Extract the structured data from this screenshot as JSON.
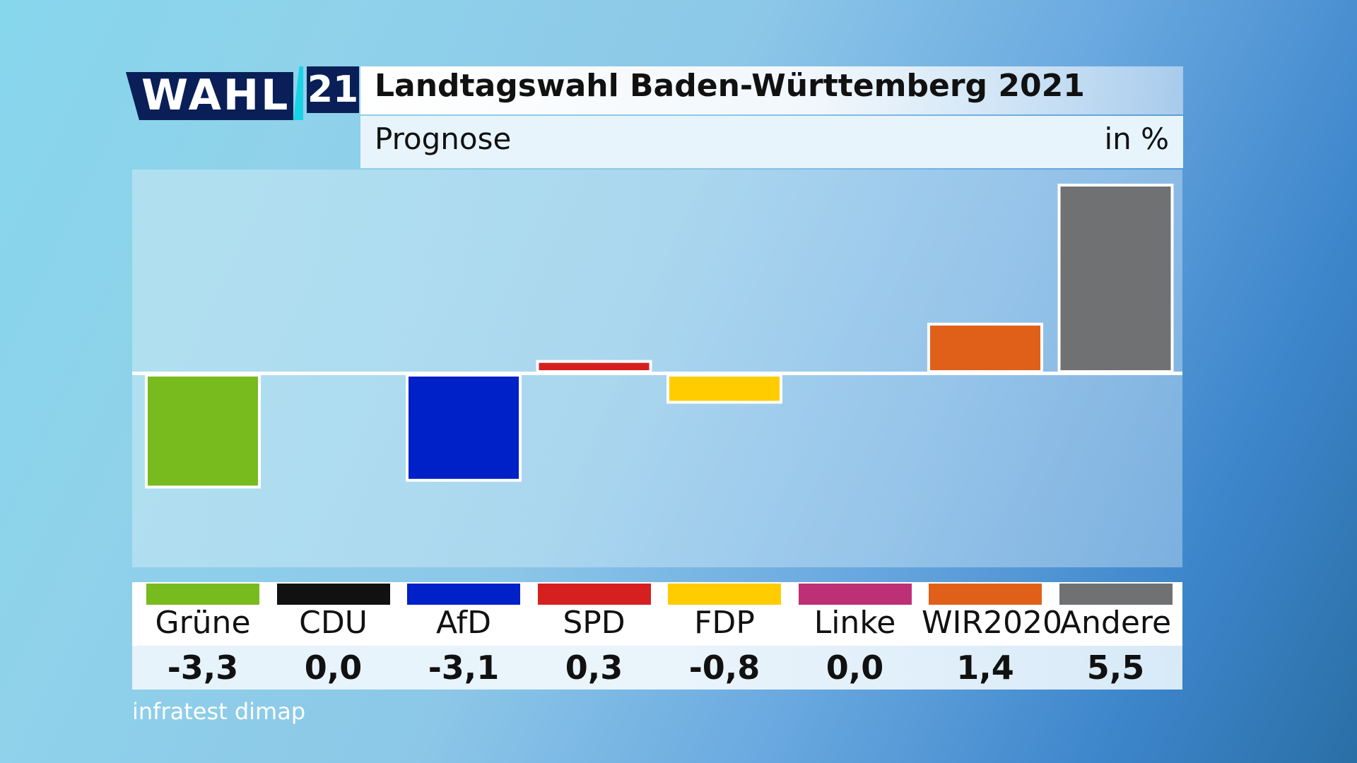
{
  "header": {
    "logo_word": "WAHL",
    "logo_number": "21",
    "title": "Landtagswahl Baden-Württemberg 2021",
    "subtitle": "Prognose",
    "unit": "in %"
  },
  "source": "infratest dimap",
  "chart_data": {
    "type": "bar",
    "title": "Landtagswahl Baden-Württemberg 2021",
    "subtitle": "Prognose",
    "unit": "in %",
    "categories": [
      "Grüne",
      "CDU",
      "AfD",
      "SPD",
      "FDP",
      "Linke",
      "WIR2020",
      "Andere"
    ],
    "values": [
      -3.3,
      0.0,
      -3.1,
      0.3,
      -0.8,
      0.0,
      1.4,
      5.5
    ],
    "value_labels": [
      "-3,3",
      "0,0",
      "-3,1",
      "0,3",
      "-0,8",
      "0,0",
      "1,4",
      "5,5"
    ],
    "colors": [
      "#78bb1e",
      "#111111",
      "#0020c8",
      "#d62020",
      "#ffcc00",
      "#be3075",
      "#e0601a",
      "#707173"
    ],
    "ylim": [
      -5.7,
      5.7
    ],
    "grid": false
  }
}
